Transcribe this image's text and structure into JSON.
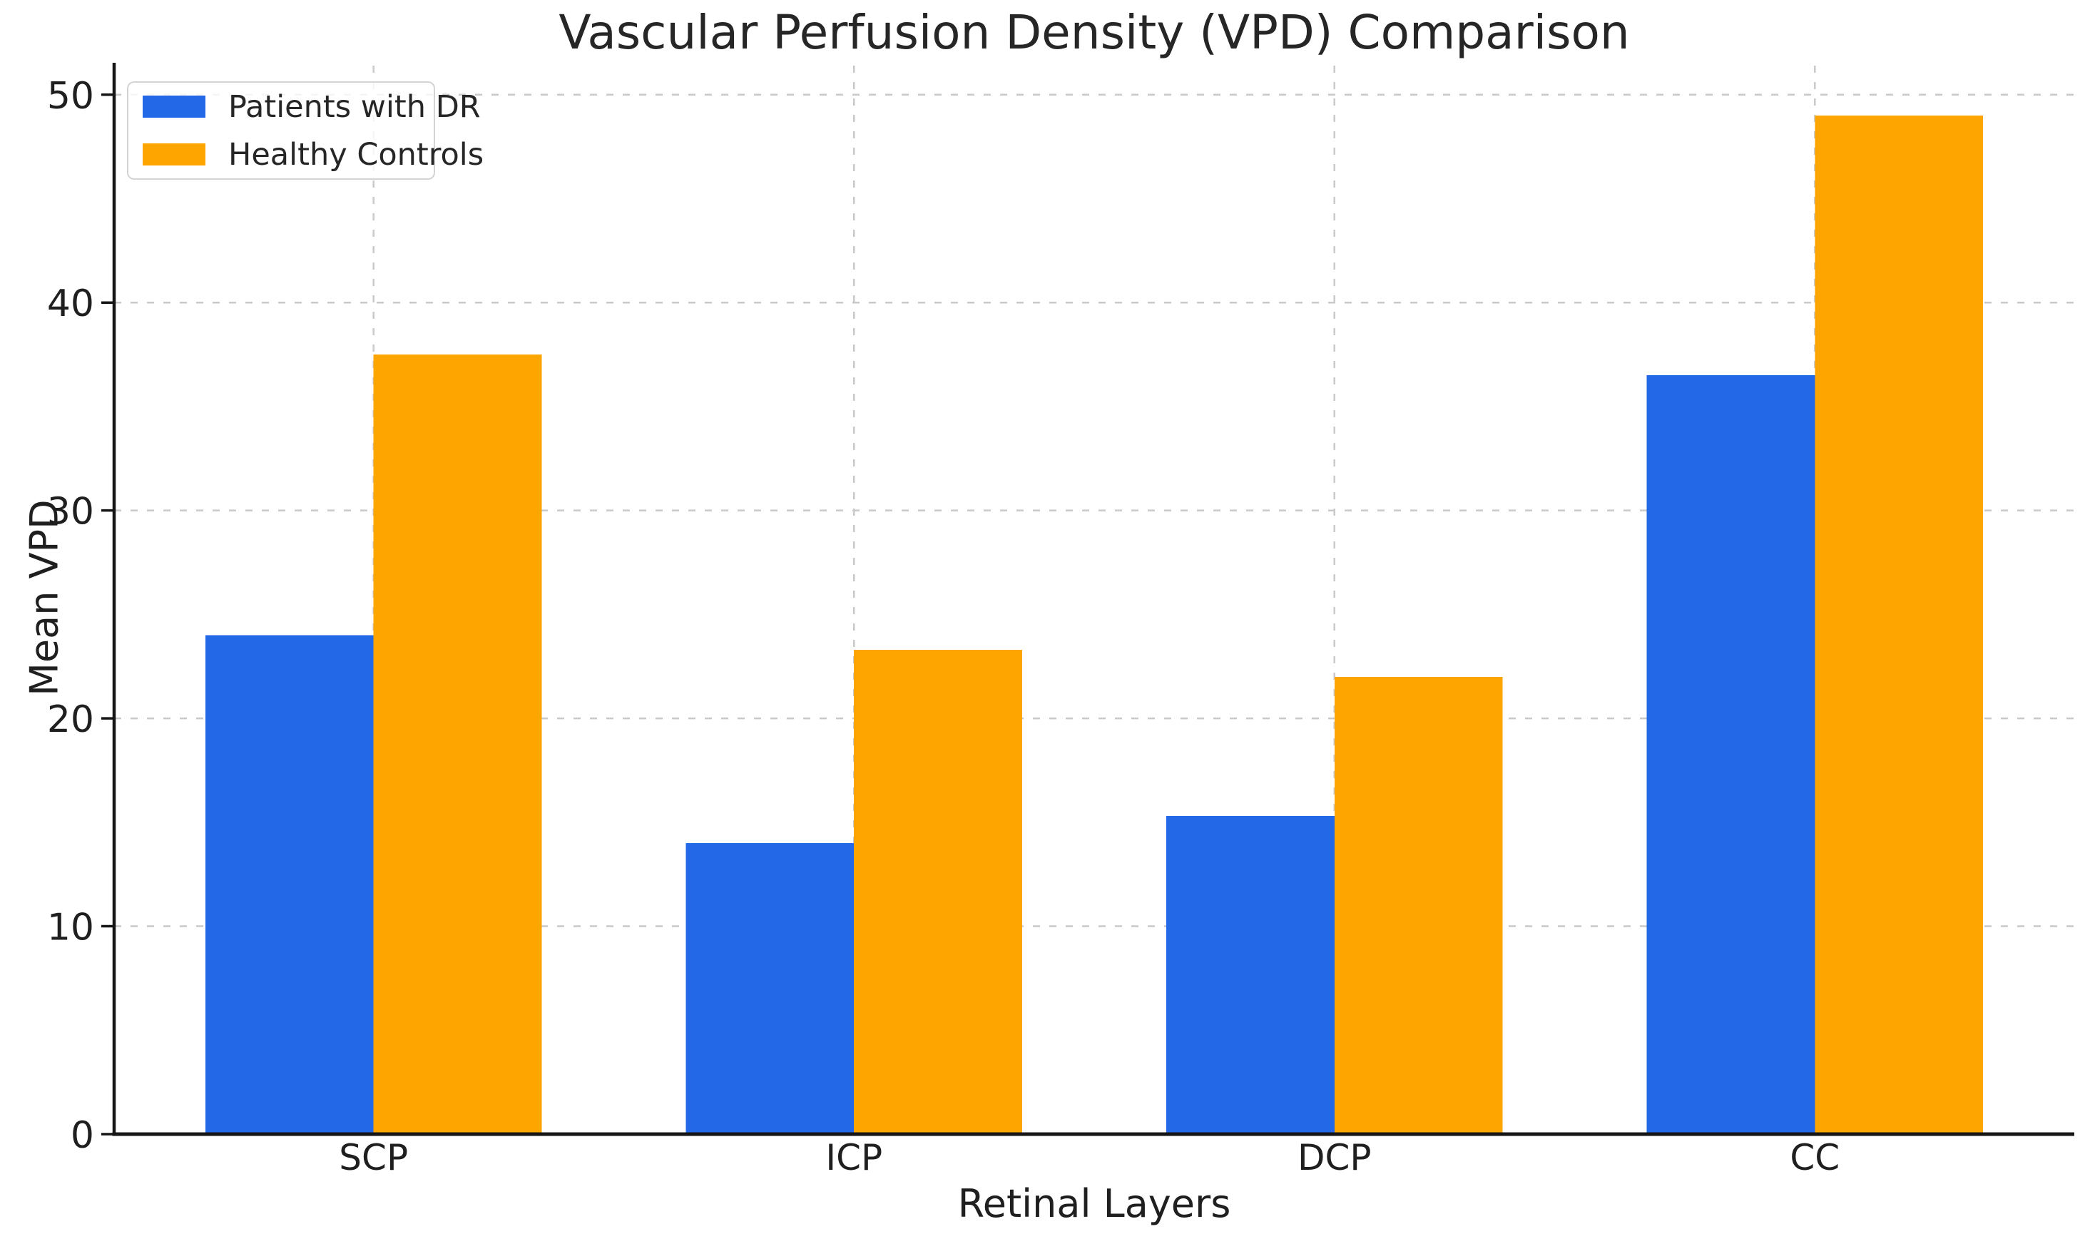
{
  "chart_data": {
    "type": "bar",
    "title": "Vascular Perfusion Density (VPD) Comparison",
    "xlabel": "Retinal Layers",
    "ylabel": "Mean VPD",
    "categories": [
      "SCP",
      "ICP",
      "DCP",
      "CC"
    ],
    "series": [
      {
        "name": "Patients with DR",
        "color": "#2368E6",
        "values": [
          24.0,
          14.0,
          15.3,
          36.5
        ]
      },
      {
        "name": "Healthy Controls",
        "color": "#FFA500",
        "values": [
          37.5,
          23.3,
          22.0,
          49.0
        ]
      }
    ],
    "ylim": [
      0,
      51.4
    ],
    "yticks": [
      0,
      10,
      20,
      30,
      40,
      50
    ],
    "bar_width_fraction": 0.35,
    "grid": {
      "axis": "both",
      "style": "dashed",
      "color": "#c9c9c9"
    },
    "legend": {
      "position": "upper left"
    },
    "text_color": "#1f1f1f",
    "spine_color": "#151515",
    "background": "#ffffff"
  }
}
